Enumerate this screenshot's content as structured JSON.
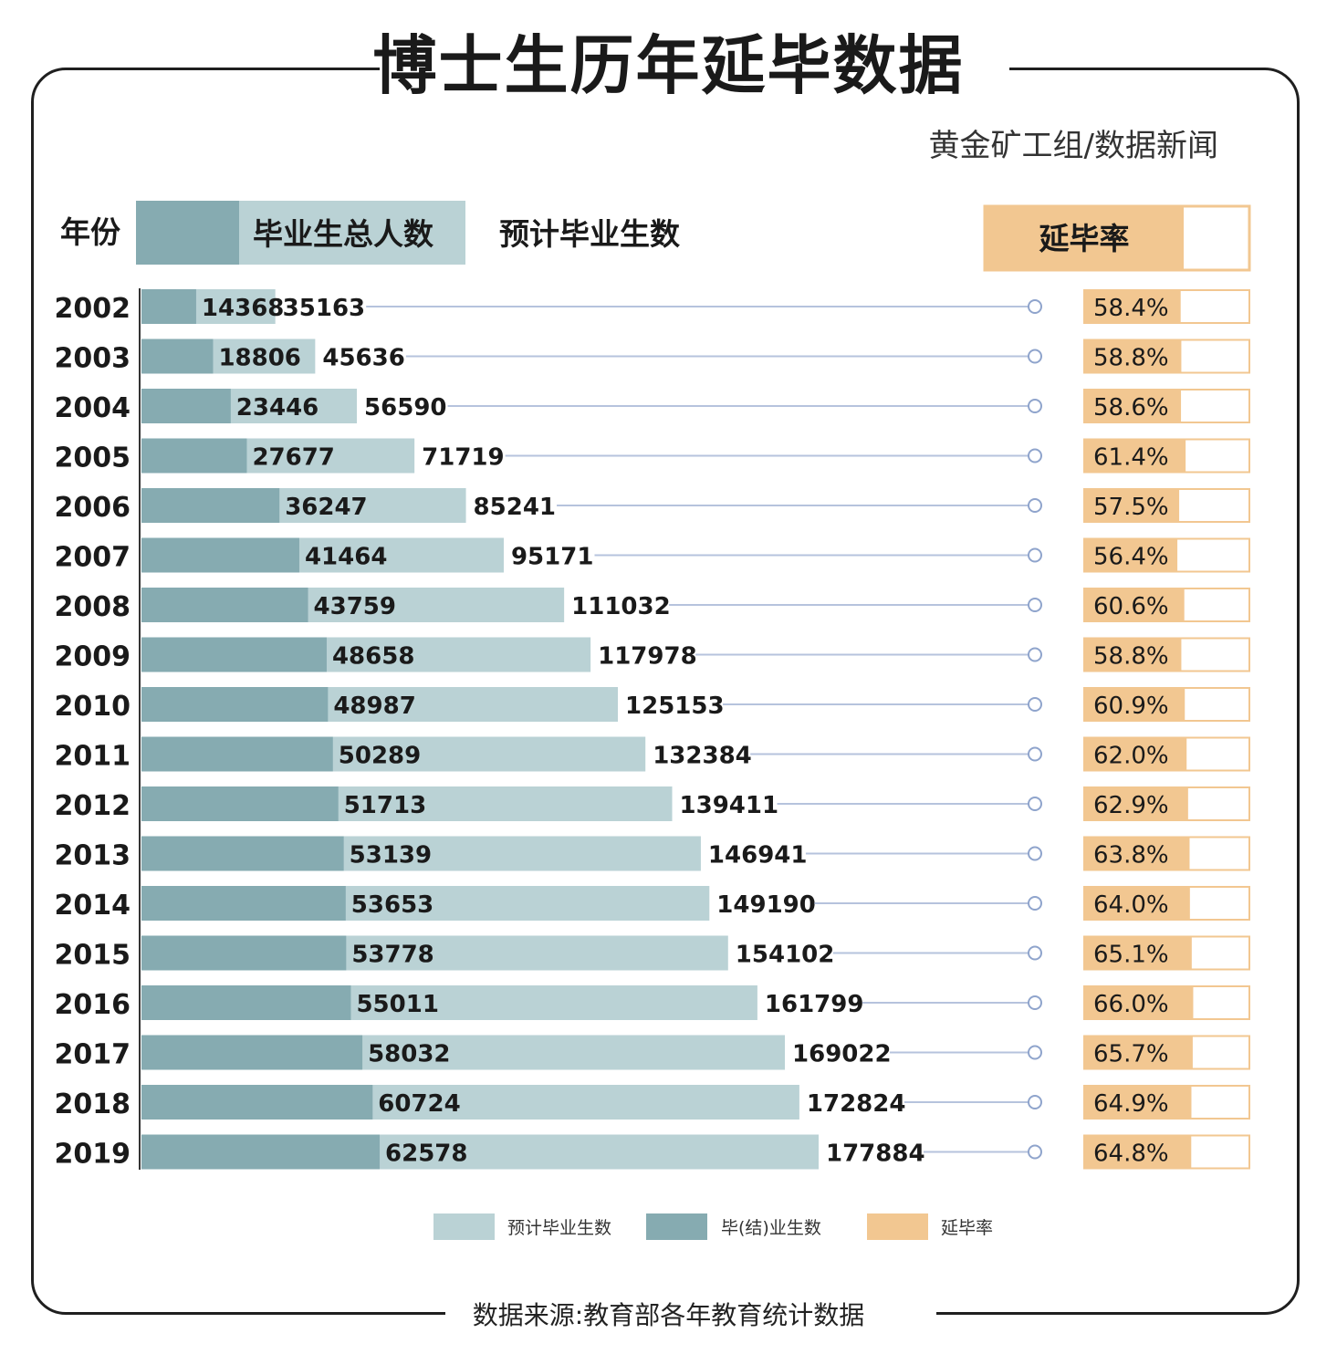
{
  "title": "博士生历年延毕数据",
  "subtitle": "黄金矿工组/数据新闻",
  "source": "数据来源:教育部各年教育统计数据",
  "header": {
    "year_label": "年份",
    "total_label": "毕业生总人数",
    "expected_label": "预计毕业生数",
    "rate_label": "延毕率"
  },
  "legend": {
    "expected": "预计毕业生数",
    "graduated": "毕(结)业生数",
    "rate": "延毕率"
  },
  "colors": {
    "graduated": "#86abb1",
    "expected": "#bad2d5",
    "rate": "#f2c791",
    "connector": "#b6c3dd"
  },
  "chart_data": {
    "type": "bar",
    "orientation": "horizontal",
    "categories": [
      "2002",
      "2003",
      "2004",
      "2005",
      "2006",
      "2007",
      "2008",
      "2009",
      "2010",
      "2011",
      "2012",
      "2013",
      "2014",
      "2015",
      "2016",
      "2017",
      "2018",
      "2019"
    ],
    "series": [
      {
        "name": "毕(结)业生数",
        "values": [
          14368,
          18806,
          23446,
          27677,
          36247,
          41464,
          43759,
          48658,
          48987,
          50289,
          51713,
          53139,
          53653,
          53778,
          55011,
          58032,
          60724,
          62578
        ]
      },
      {
        "name": "预计毕业生数",
        "values": [
          35163,
          45636,
          56590,
          71719,
          85241,
          95171,
          111032,
          117978,
          125153,
          132384,
          139411,
          146941,
          149190,
          154102,
          161799,
          169022,
          172824,
          177884
        ]
      },
      {
        "name": "延毕率",
        "values": [
          58.4,
          58.8,
          58.6,
          61.4,
          57.5,
          56.4,
          60.6,
          58.8,
          60.9,
          62.0,
          62.9,
          63.8,
          64.0,
          65.1,
          66.0,
          65.7,
          64.9,
          64.8
        ]
      }
    ],
    "rate_labels": [
      "58.4%",
      "58.8%",
      "58.6%",
      "61.4%",
      "57.5%",
      "56.4%",
      "60.6%",
      "58.8%",
      "60.9%",
      "62.0%",
      "62.9%",
      "63.8%",
      "64.0%",
      "65.1%",
      "66.0%",
      "65.7%",
      "64.9%",
      "64.8%"
    ],
    "xlim": [
      0,
      180000
    ],
    "legend_position": "bottom"
  }
}
